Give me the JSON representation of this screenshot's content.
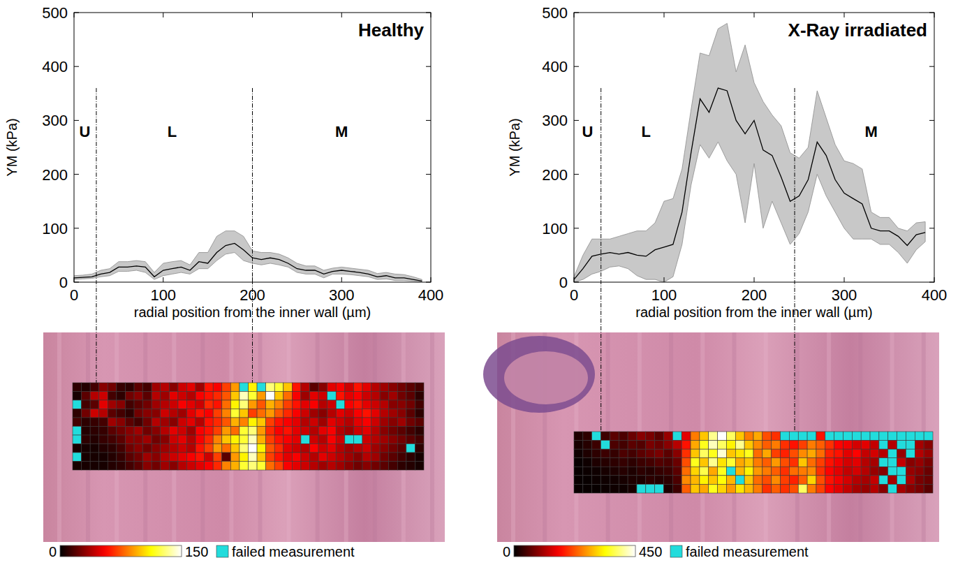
{
  "chart_data": [
    {
      "type": "line",
      "title": "Healthy",
      "x_label": "radial position from the inner wall (µm)",
      "y_label": "YM (kPa)",
      "xlim": [
        0,
        400
      ],
      "ylim": [
        0,
        500
      ],
      "xticks": [
        0,
        100,
        200,
        300,
        400
      ],
      "yticks": [
        0,
        100,
        200,
        300,
        400,
        500
      ],
      "color": "#000000",
      "x": [
        0,
        10,
        20,
        30,
        40,
        50,
        60,
        70,
        80,
        90,
        100,
        110,
        120,
        130,
        140,
        150,
        160,
        170,
        180,
        190,
        200,
        210,
        220,
        230,
        240,
        250,
        260,
        270,
        280,
        290,
        300,
        310,
        320,
        330,
        340,
        350,
        360,
        370,
        380,
        390
      ],
      "values": [
        8,
        9,
        10,
        15,
        18,
        28,
        28,
        30,
        28,
        10,
        22,
        25,
        28,
        22,
        38,
        35,
        55,
        68,
        72,
        60,
        45,
        42,
        45,
        42,
        35,
        25,
        22,
        22,
        15,
        20,
        22,
        20,
        18,
        15,
        10,
        12,
        8,
        8,
        5,
        2
      ],
      "band_lower": [
        5,
        6,
        7,
        10,
        12,
        20,
        20,
        22,
        18,
        5,
        12,
        15,
        18,
        15,
        25,
        25,
        40,
        52,
        55,
        40,
        35,
        32,
        35,
        32,
        28,
        18,
        15,
        15,
        8,
        15,
        15,
        14,
        12,
        10,
        5,
        6,
        3,
        3,
        2,
        0
      ],
      "band_upper": [
        12,
        13,
        15,
        22,
        25,
        38,
        38,
        40,
        38,
        18,
        35,
        38,
        40,
        32,
        55,
        55,
        85,
        95,
        95,
        85,
        58,
        55,
        55,
        52,
        45,
        35,
        30,
        30,
        22,
        26,
        28,
        26,
        24,
        22,
        16,
        18,
        15,
        14,
        10,
        5
      ],
      "boundaries": [
        25,
        200
      ],
      "regions": [
        {
          "label": "U",
          "x": 12,
          "y": 270
        },
        {
          "label": "L",
          "x": 110,
          "y": 270
        },
        {
          "label": "M",
          "x": 300,
          "y": 270
        }
      ],
      "heatmap": {
        "colorbar_range": [
          0,
          150
        ],
        "colorbar_ticks": [
          0,
          150
        ],
        "failed_label": "failed measurement",
        "cells": [
          [
            10,
            8,
            15,
            30,
            25,
            12,
            10,
            20,
            15,
            35,
            40,
            30,
            45,
            50,
            35,
            60,
            55,
            70,
            90,
            null,
            110,
            null,
            130,
            120,
            100,
            60,
            40,
            20,
            30,
            50,
            55,
            45,
            60,
            50,
            40,
            35,
            30,
            25,
            20,
            15
          ],
          [
            5,
            20,
            40,
            45,
            15,
            10,
            25,
            30,
            20,
            40,
            35,
            50,
            45,
            40,
            55,
            60,
            65,
            75,
            100,
            140,
            120,
            90,
            150,
            100,
            80,
            55,
            35,
            50,
            45,
            null,
            60,
            50,
            55,
            45,
            40,
            30,
            35,
            25,
            20,
            10
          ],
          [
            null,
            15,
            20,
            50,
            35,
            30,
            15,
            20,
            25,
            35,
            40,
            45,
            55,
            50,
            45,
            65,
            60,
            80,
            110,
            130,
            90,
            75,
            95,
            85,
            70,
            60,
            50,
            55,
            40,
            45,
            null,
            55,
            60,
            50,
            45,
            40,
            30,
            30,
            25,
            15
          ],
          [
            10,
            25,
            45,
            40,
            20,
            15,
            10,
            25,
            30,
            30,
            45,
            40,
            35,
            50,
            60,
            55,
            70,
            85,
            120,
            100,
            70,
            80,
            90,
            75,
            65,
            55,
            45,
            35,
            30,
            40,
            50,
            45,
            55,
            60,
            50,
            40,
            35,
            30,
            20,
            10
          ],
          [
            15,
            10,
            12,
            15,
            35,
            30,
            20,
            15,
            25,
            40,
            35,
            30,
            45,
            50,
            40,
            60,
            65,
            75,
            95,
            85,
            110,
            100,
            70,
            60,
            55,
            50,
            40,
            45,
            35,
            50,
            45,
            40,
            50,
            55,
            45,
            35,
            30,
            35,
            25,
            20
          ],
          [
            null,
            8,
            10,
            12,
            20,
            25,
            30,
            35,
            25,
            30,
            40,
            50,
            45,
            35,
            55,
            60,
            70,
            90,
            80,
            120,
            130,
            90,
            65,
            55,
            60,
            50,
            45,
            40,
            50,
            55,
            40,
            35,
            45,
            50,
            40,
            30,
            25,
            20,
            15,
            10
          ],
          [
            null,
            10,
            8,
            12,
            15,
            20,
            30,
            30,
            35,
            25,
            30,
            45,
            50,
            40,
            55,
            65,
            85,
            100,
            110,
            120,
            140,
            95,
            70,
            60,
            55,
            50,
            null,
            45,
            40,
            55,
            45,
            null,
            null,
            45,
            40,
            35,
            30,
            25,
            20,
            15
          ],
          [
            5,
            5,
            5,
            8,
            10,
            15,
            25,
            30,
            25,
            30,
            35,
            40,
            45,
            40,
            60,
            70,
            90,
            80,
            100,
            130,
            150,
            110,
            75,
            65,
            50,
            45,
            40,
            55,
            45,
            50,
            40,
            35,
            40,
            45,
            35,
            30,
            25,
            20,
            null,
            10
          ],
          [
            null,
            5,
            5,
            5,
            8,
            12,
            20,
            25,
            35,
            30,
            40,
            45,
            50,
            55,
            60,
            45,
            70,
            20,
            90,
            110,
            140,
            100,
            70,
            60,
            50,
            55,
            45,
            40,
            50,
            45,
            40,
            35,
            30,
            40,
            35,
            25,
            20,
            15,
            10,
            5
          ],
          [
            5,
            5,
            5,
            5,
            8,
            10,
            15,
            20,
            30,
            25,
            35,
            30,
            40,
            45,
            50,
            55,
            65,
            85,
            95,
            120,
            130,
            120,
            80,
            70,
            55,
            50,
            45,
            40,
            35,
            40,
            35,
            30,
            25,
            30,
            25,
            20,
            15,
            10,
            8,
            5
          ]
        ]
      }
    },
    {
      "type": "line",
      "title": "X-Ray irradiated",
      "x_label": "radial position from the inner wall (µm)",
      "y_label": "YM (kPa)",
      "xlim": [
        0,
        400
      ],
      "ylim": [
        0,
        500
      ],
      "xticks": [
        0,
        100,
        200,
        300,
        400
      ],
      "yticks": [
        0,
        100,
        200,
        300,
        400,
        500
      ],
      "color": "#000000",
      "x": [
        0,
        10,
        20,
        30,
        40,
        50,
        60,
        70,
        80,
        90,
        100,
        110,
        120,
        130,
        140,
        150,
        160,
        170,
        180,
        190,
        200,
        210,
        220,
        230,
        240,
        250,
        260,
        270,
        280,
        290,
        300,
        310,
        320,
        330,
        340,
        350,
        360,
        370,
        380,
        390
      ],
      "values": [
        5,
        25,
        48,
        52,
        55,
        52,
        55,
        50,
        48,
        60,
        65,
        70,
        130,
        240,
        340,
        315,
        360,
        355,
        300,
        275,
        300,
        245,
        235,
        195,
        150,
        160,
        190,
        260,
        235,
        190,
        165,
        155,
        145,
        100,
        95,
        95,
        85,
        68,
        88,
        92
      ],
      "band_lower": [
        0,
        5,
        15,
        20,
        28,
        30,
        25,
        12,
        5,
        5,
        0,
        10,
        70,
        180,
        255,
        230,
        260,
        225,
        200,
        110,
        220,
        100,
        150,
        110,
        70,
        90,
        130,
        200,
        160,
        130,
        100,
        80,
        80,
        80,
        70,
        70,
        55,
        35,
        60,
        75
      ],
      "band_upper": [
        10,
        50,
        80,
        80,
        80,
        85,
        90,
        95,
        95,
        110,
        150,
        155,
        210,
        320,
        425,
        420,
        470,
        480,
        390,
        440,
        370,
        335,
        310,
        290,
        240,
        230,
        250,
        355,
        305,
        255,
        225,
        220,
        210,
        130,
        120,
        120,
        100,
        95,
        110,
        112
      ],
      "boundaries": [
        30,
        245
      ],
      "regions": [
        {
          "label": "U",
          "x": 15,
          "y": 270
        },
        {
          "label": "L",
          "x": 80,
          "y": 270
        },
        {
          "label": "M",
          "x": 330,
          "y": 270
        }
      ],
      "heatmap": {
        "colorbar_range": [
          0,
          450
        ],
        "colorbar_ticks": [
          0,
          450
        ],
        "failed_label": "failed measurement",
        "cells": [
          [
            20,
            30,
            null,
            40,
            60,
            50,
            70,
            90,
            80,
            60,
            100,
            null,
            150,
            250,
            300,
            400,
            450,
            380,
            300,
            250,
            280,
            220,
            200,
            null,
            null,
            null,
            null,
            180,
            null,
            null,
            null,
            null,
            null,
            null,
            null,
            null,
            null,
            null,
            null,
            null
          ],
          [
            15,
            25,
            40,
            null,
            50,
            45,
            60,
            55,
            80,
            70,
            90,
            120,
            180,
            280,
            350,
            420,
            380,
            330,
            400,
            300,
            260,
            230,
            250,
            200,
            180,
            210,
            250,
            230,
            200,
            170,
            160,
            140,
            150,
            130,
            null,
            120,
            null,
            null,
            110,
            90
          ],
          [
            10,
            20,
            30,
            40,
            35,
            50,
            45,
            60,
            70,
            80,
            60,
            90,
            200,
            300,
            380,
            350,
            430,
            300,
            320,
            350,
            240,
            280,
            210,
            190,
            220,
            260,
            280,
            240,
            190,
            180,
            150,
            170,
            130,
            140,
            120,
            null,
            100,
            null,
            120,
            100
          ],
          [
            5,
            10,
            20,
            25,
            30,
            35,
            30,
            40,
            45,
            55,
            50,
            70,
            220,
            350,
            300,
            400,
            320,
            360,
            280,
            300,
            250,
            230,
            270,
            220,
            200,
            300,
            240,
            210,
            180,
            160,
            140,
            150,
            120,
            110,
            null,
            null,
            130,
            90,
            100,
            80
          ],
          [
            5,
            8,
            10,
            15,
            20,
            25,
            20,
            30,
            25,
            35,
            40,
            60,
            240,
            310,
            370,
            280,
            350,
            null,
            290,
            330,
            270,
            250,
            230,
            200,
            240,
            250,
            260,
            200,
            170,
            150,
            130,
            140,
            120,
            100,
            90,
            null,
            null,
            100,
            90,
            70
          ],
          [
            5,
            5,
            8,
            10,
            12,
            15,
            20,
            20,
            30,
            25,
            30,
            50,
            260,
            290,
            330,
            300,
            340,
            290,
            null,
            300,
            240,
            220,
            260,
            210,
            190,
            230,
            310,
            220,
            180,
            160,
            140,
            120,
            110,
            130,
            null,
            110,
            null,
            110,
            80,
            70
          ],
          [
            5,
            5,
            5,
            8,
            10,
            10,
            15,
            null,
            null,
            null,
            20,
            40,
            230,
            300,
            280,
            350,
            310,
            270,
            320,
            290,
            250,
            200,
            230,
            200,
            220,
            380,
            250,
            210,
            170,
            150,
            130,
            110,
            100,
            120,
            90,
            null,
            110,
            90,
            80,
            60
          ]
        ]
      }
    }
  ]
}
